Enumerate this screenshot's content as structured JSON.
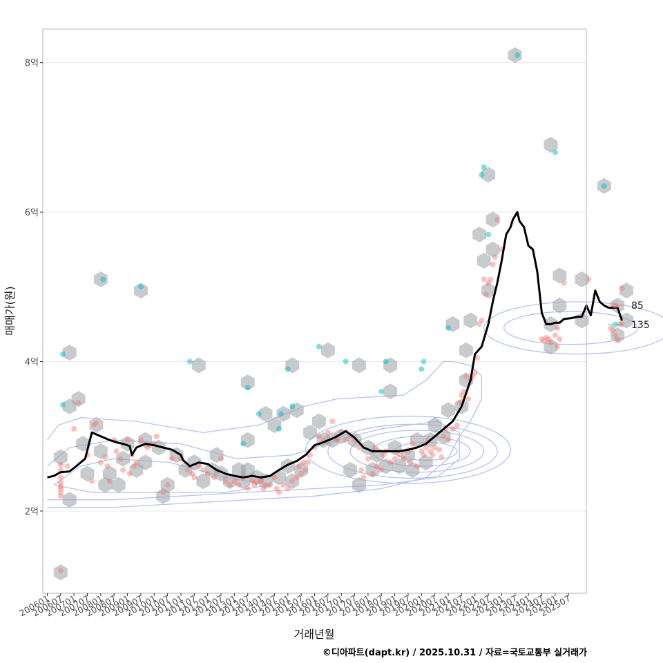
{
  "chart_data": {
    "type": "scatter",
    "xlabel": "거래년월",
    "ylabel": "매매가(원)",
    "caption": "©디아파트(dapt.kr) / 2025.10.31 / 자료=국토교통부 실거래가",
    "x_tick_labels": [
      "200601",
      "200607",
      "200701",
      "200707",
      "200801",
      "200807",
      "200901",
      "200907",
      "201001",
      "201007",
      "201101",
      "201107",
      "201201",
      "201207",
      "201301",
      "201307",
      "201401",
      "201407",
      "201501",
      "201507",
      "201601",
      "201607",
      "201701",
      "201707",
      "201801",
      "201807",
      "201901",
      "201907",
      "202001",
      "202007",
      "202101",
      "202107",
      "202201",
      "202207",
      "202301",
      "202307",
      "202401",
      "202407",
      "202501",
      "202507"
    ],
    "y_unit": "억",
    "y_ticks": [
      {
        "value": 2,
        "label": "2억"
      },
      {
        "value": 4,
        "label": "4억"
      },
      {
        "value": 6,
        "label": "6억"
      },
      {
        "value": 8,
        "label": "8억"
      }
    ],
    "x_range_months": [
      -2,
      242
    ],
    "y_range": [
      0.9,
      8.45
    ],
    "legend": [
      {
        "name": "85",
        "color": "#F8766D"
      },
      {
        "name": "135",
        "color": "#00BFC4"
      }
    ],
    "series_85_points": [
      [
        6,
        2.62
      ],
      [
        6,
        2.55
      ],
      [
        6,
        2.45
      ],
      [
        6,
        2.38
      ],
      [
        6,
        2.33
      ],
      [
        6,
        2.3
      ],
      [
        6,
        2.25
      ],
      [
        6,
        2.2
      ],
      [
        6,
        1.2
      ],
      [
        9,
        2.6
      ],
      [
        12,
        3.1
      ],
      [
        14,
        3.45
      ],
      [
        18,
        2.75
      ],
      [
        20,
        2.4
      ],
      [
        21,
        3.15
      ],
      [
        22,
        3.18
      ],
      [
        24,
        2.65
      ],
      [
        26,
        2.72
      ],
      [
        27,
        2.6
      ],
      [
        28,
        2.4
      ],
      [
        30,
        2.95
      ],
      [
        31,
        2.8
      ],
      [
        33,
        2.7
      ],
      [
        34,
        2.55
      ],
      [
        36,
        2.95
      ],
      [
        37,
        2.5
      ],
      [
        38,
        2.75
      ],
      [
        39,
        2.6
      ],
      [
        40,
        2.65
      ],
      [
        42,
        2.95
      ],
      [
        45,
        2.85
      ],
      [
        46,
        2.88
      ],
      [
        48,
        2.9
      ],
      [
        49,
        3.0
      ],
      [
        52,
        2.25
      ],
      [
        54,
        2.35
      ],
      [
        56,
        2.7
      ],
      [
        60,
        2.7
      ],
      [
        63,
        2.55
      ],
      [
        65,
        2.5
      ],
      [
        66,
        2.45
      ],
      [
        68,
        2.6
      ],
      [
        70,
        2.55
      ],
      [
        72,
        2.5
      ],
      [
        75,
        2.45
      ],
      [
        78,
        2.7
      ],
      [
        80,
        2.4
      ],
      [
        82,
        2.35
      ],
      [
        84,
        2.4
      ],
      [
        86,
        2.35
      ],
      [
        88,
        2.45
      ],
      [
        90,
        2.3
      ],
      [
        92,
        2.4
      ],
      [
        93,
        2.35
      ],
      [
        94,
        2.4
      ],
      [
        96,
        2.4
      ],
      [
        97,
        2.3
      ],
      [
        98,
        2.35
      ],
      [
        100,
        2.35
      ],
      [
        102,
        2.45
      ],
      [
        103,
        2.3
      ],
      [
        104,
        2.25
      ],
      [
        106,
        2.35
      ],
      [
        108,
        2.3
      ],
      [
        110,
        2.4
      ],
      [
        112,
        2.45
      ],
      [
        113,
        2.6
      ],
      [
        114,
        2.5
      ],
      [
        115,
        2.65
      ],
      [
        116,
        2.55
      ],
      [
        117,
        2.65
      ],
      [
        118,
        2.75
      ],
      [
        120,
        2.85
      ],
      [
        122,
        3.0
      ],
      [
        124,
        2.95
      ],
      [
        126,
        3.05
      ],
      [
        128,
        3.2
      ],
      [
        130,
        2.95
      ],
      [
        132,
        3.05
      ],
      [
        134,
        2.95
      ],
      [
        136,
        3.0
      ],
      [
        138,
        2.95
      ],
      [
        140,
        2.85
      ],
      [
        141,
        2.55
      ],
      [
        142,
        2.45
      ],
      [
        144,
        2.7
      ],
      [
        146,
        2.5
      ],
      [
        147,
        2.85
      ],
      [
        148,
        2.6
      ],
      [
        150,
        2.55
      ],
      [
        151,
        2.75
      ],
      [
        152,
        2.8
      ],
      [
        154,
        2.65
      ],
      [
        156,
        2.7
      ],
      [
        158,
        2.75
      ],
      [
        160,
        2.7
      ],
      [
        162,
        2.8
      ],
      [
        163,
        2.65
      ],
      [
        164,
        2.9
      ],
      [
        166,
        2.6
      ],
      [
        168,
        2.8
      ],
      [
        169,
        2.75
      ],
      [
        170,
        2.85
      ],
      [
        171,
        2.95
      ],
      [
        172,
        2.8
      ],
      [
        173,
        2.75
      ],
      [
        174,
        2.85
      ],
      [
        176,
        2.82
      ],
      [
        177,
        2.72
      ],
      [
        178,
        3.0
      ],
      [
        179,
        3.1
      ],
      [
        180,
        2.95
      ],
      [
        182,
        3.1
      ],
      [
        184,
        3.15
      ],
      [
        185,
        3.45
      ],
      [
        186,
        3.55
      ],
      [
        187,
        3.6
      ],
      [
        188,
        3.8
      ],
      [
        189,
        3.5
      ],
      [
        190,
        3.75
      ],
      [
        191,
        3.8
      ],
      [
        192,
        3.85
      ],
      [
        193,
        4.05
      ],
      [
        194,
        4.5
      ],
      [
        195,
        4.55
      ],
      [
        196,
        5.1
      ],
      [
        197,
        4.9
      ],
      [
        198,
        5.05
      ],
      [
        199,
        5.1
      ],
      [
        200,
        5.3
      ],
      [
        201,
        5.4
      ],
      [
        202,
        5.9
      ],
      [
        204,
        5.5
      ],
      [
        222,
        4.3
      ],
      [
        223,
        4.28
      ],
      [
        224,
        4.32
      ],
      [
        225,
        4.3
      ],
      [
        226,
        4.25
      ],
      [
        228,
        4.35
      ],
      [
        229,
        4.45
      ],
      [
        229,
        4.2
      ],
      [
        230,
        4.3
      ],
      [
        232,
        5.05
      ],
      [
        243,
        5.1
      ],
      [
        253,
        4.45
      ],
      [
        254,
        4.42
      ],
      [
        255,
        4.35
      ],
      [
        256,
        4.3
      ],
      [
        257,
        4.5
      ],
      [
        258,
        4.5
      ],
      [
        258,
        4.98
      ]
    ],
    "series_135_points": [
      [
        7,
        3.42
      ],
      [
        7,
        4.1
      ],
      [
        25,
        5.1
      ],
      [
        42,
        5.0
      ],
      [
        64,
        4.0
      ],
      [
        90,
        3.65
      ],
      [
        88,
        2.9
      ],
      [
        95,
        3.3
      ],
      [
        104,
        3.1
      ],
      [
        105,
        3.3
      ],
      [
        108,
        3.9
      ],
      [
        110,
        3.4
      ],
      [
        122,
        4.2
      ],
      [
        134,
        4.0
      ],
      [
        150,
        3.6
      ],
      [
        152,
        4.0
      ],
      [
        168,
        3.9
      ],
      [
        169,
        4.0
      ],
      [
        180,
        4.45
      ],
      [
        195,
        6.5
      ],
      [
        196,
        6.6
      ],
      [
        198,
        5.7
      ],
      [
        211,
        8.1
      ],
      [
        228,
        6.8
      ],
      [
        250,
        6.35
      ]
    ],
    "moving_average": [
      [
        0,
        2.45
      ],
      [
        3,
        2.47
      ],
      [
        6,
        2.52
      ],
      [
        10,
        2.53
      ],
      [
        13,
        2.6
      ],
      [
        17,
        2.7
      ],
      [
        20,
        3.05
      ],
      [
        24,
        3.0
      ],
      [
        28,
        2.95
      ],
      [
        31,
        2.92
      ],
      [
        34,
        2.9
      ],
      [
        37,
        2.87
      ],
      [
        38,
        2.75
      ],
      [
        40,
        2.85
      ],
      [
        44,
        2.9
      ],
      [
        48,
        2.88
      ],
      [
        52,
        2.85
      ],
      [
        56,
        2.82
      ],
      [
        60,
        2.75
      ],
      [
        61,
        2.68
      ],
      [
        64,
        2.6
      ],
      [
        68,
        2.65
      ],
      [
        72,
        2.63
      ],
      [
        76,
        2.55
      ],
      [
        80,
        2.5
      ],
      [
        84,
        2.47
      ],
      [
        88,
        2.45
      ],
      [
        92,
        2.47
      ],
      [
        96,
        2.45
      ],
      [
        100,
        2.47
      ],
      [
        104,
        2.55
      ],
      [
        108,
        2.62
      ],
      [
        112,
        2.67
      ],
      [
        116,
        2.75
      ],
      [
        120,
        2.88
      ],
      [
        124,
        2.92
      ],
      [
        128,
        2.97
      ],
      [
        130,
        3.0
      ],
      [
        134,
        3.07
      ],
      [
        138,
        2.98
      ],
      [
        142,
        2.85
      ],
      [
        146,
        2.8
      ],
      [
        150,
        2.8
      ],
      [
        154,
        2.8
      ],
      [
        158,
        2.8
      ],
      [
        162,
        2.82
      ],
      [
        166,
        2.85
      ],
      [
        170,
        2.9
      ],
      [
        174,
        3.0
      ],
      [
        178,
        3.1
      ],
      [
        182,
        3.2
      ],
      [
        186,
        3.4
      ],
      [
        190,
        3.75
      ],
      [
        192,
        4.1
      ],
      [
        195,
        4.2
      ],
      [
        198,
        4.5
      ],
      [
        200,
        4.8
      ],
      [
        202,
        5.05
      ],
      [
        204,
        5.35
      ],
      [
        206,
        5.7
      ],
      [
        208,
        5.8
      ],
      [
        209,
        5.9
      ],
      [
        211,
        6.0
      ],
      [
        212,
        5.88
      ],
      [
        214,
        5.8
      ],
      [
        216,
        5.55
      ],
      [
        218,
        5.5
      ],
      [
        220,
        5.2
      ],
      [
        222,
        4.65
      ],
      [
        224,
        4.5
      ],
      [
        226,
        4.5
      ],
      [
        228,
        4.52
      ],
      [
        230,
        4.52
      ],
      [
        232,
        4.57
      ],
      [
        235,
        4.58
      ],
      [
        238,
        4.6
      ],
      [
        240,
        4.6
      ],
      [
        242,
        4.75
      ],
      [
        244,
        4.62
      ],
      [
        246,
        4.95
      ],
      [
        248,
        4.8
      ],
      [
        250,
        4.75
      ],
      [
        252,
        4.72
      ],
      [
        256,
        4.72
      ],
      [
        258,
        4.55
      ]
    ],
    "hexbin_centers": [
      [
        6,
        1.18
      ],
      [
        6,
        2.72
      ],
      [
        10,
        2.15
      ],
      [
        10,
        3.4
      ],
      [
        10,
        4.12
      ],
      [
        14,
        3.5
      ],
      [
        16,
        2.9
      ],
      [
        18,
        2.5
      ],
      [
        22,
        3.15
      ],
      [
        24,
        2.8
      ],
      [
        24,
        5.1
      ],
      [
        26,
        2.35
      ],
      [
        28,
        2.5
      ],
      [
        32,
        2.35
      ],
      [
        34,
        2.7
      ],
      [
        36,
        2.9
      ],
      [
        40,
        2.55
      ],
      [
        42,
        4.95
      ],
      [
        44,
        2.95
      ],
      [
        44,
        2.65
      ],
      [
        50,
        2.85
      ],
      [
        52,
        2.2
      ],
      [
        54,
        2.35
      ],
      [
        58,
        2.75
      ],
      [
        62,
        2.55
      ],
      [
        66,
        2.65
      ],
      [
        68,
        3.95
      ],
      [
        70,
        2.4
      ],
      [
        74,
        2.55
      ],
      [
        76,
        2.75
      ],
      [
        78,
        2.5
      ],
      [
        82,
        2.4
      ],
      [
        86,
        2.55
      ],
      [
        88,
        2.4
      ],
      [
        90,
        2.55
      ],
      [
        90,
        2.95
      ],
      [
        90,
        3.72
      ],
      [
        94,
        2.45
      ],
      [
        98,
        2.4
      ],
      [
        98,
        3.3
      ],
      [
        102,
        3.15
      ],
      [
        104,
        2.45
      ],
      [
        106,
        3.3
      ],
      [
        108,
        2.6
      ],
      [
        110,
        2.4
      ],
      [
        110,
        3.95
      ],
      [
        112,
        3.35
      ],
      [
        114,
        2.55
      ],
      [
        118,
        3.05
      ],
      [
        122,
        3.2
      ],
      [
        124,
        2.95
      ],
      [
        126,
        4.15
      ],
      [
        128,
        2.95
      ],
      [
        132,
        3.0
      ],
      [
        136,
        2.55
      ],
      [
        138,
        2.95
      ],
      [
        140,
        2.35
      ],
      [
        140,
        3.95
      ],
      [
        144,
        2.85
      ],
      [
        146,
        2.55
      ],
      [
        148,
        2.75
      ],
      [
        152,
        2.6
      ],
      [
        154,
        3.95
      ],
      [
        154,
        3.6
      ],
      [
        156,
        2.85
      ],
      [
        158,
        2.6
      ],
      [
        162,
        2.75
      ],
      [
        164,
        2.55
      ],
      [
        166,
        2.95
      ],
      [
        170,
        2.65
      ],
      [
        172,
        2.95
      ],
      [
        174,
        3.15
      ],
      [
        178,
        3.0
      ],
      [
        180,
        3.35
      ],
      [
        182,
        4.5
      ],
      [
        186,
        3.4
      ],
      [
        188,
        3.75
      ],
      [
        188,
        4.15
      ],
      [
        190,
        4.55
      ],
      [
        194,
        5.7
      ],
      [
        196,
        5.35
      ],
      [
        198,
        6.5
      ],
      [
        198,
        4.95
      ],
      [
        200,
        5.9
      ],
      [
        200,
        5.5
      ],
      [
        210,
        8.1
      ],
      [
        226,
        6.9
      ],
      [
        226,
        4.5
      ],
      [
        226,
        4.2
      ],
      [
        230,
        4.75
      ],
      [
        230,
        5.15
      ],
      [
        240,
        5.1
      ],
      [
        240,
        4.55
      ],
      [
        250,
        6.35
      ],
      [
        256,
        4.75
      ],
      [
        256,
        4.35
      ],
      [
        260,
        4.95
      ],
      [
        260,
        4.55
      ]
    ]
  }
}
